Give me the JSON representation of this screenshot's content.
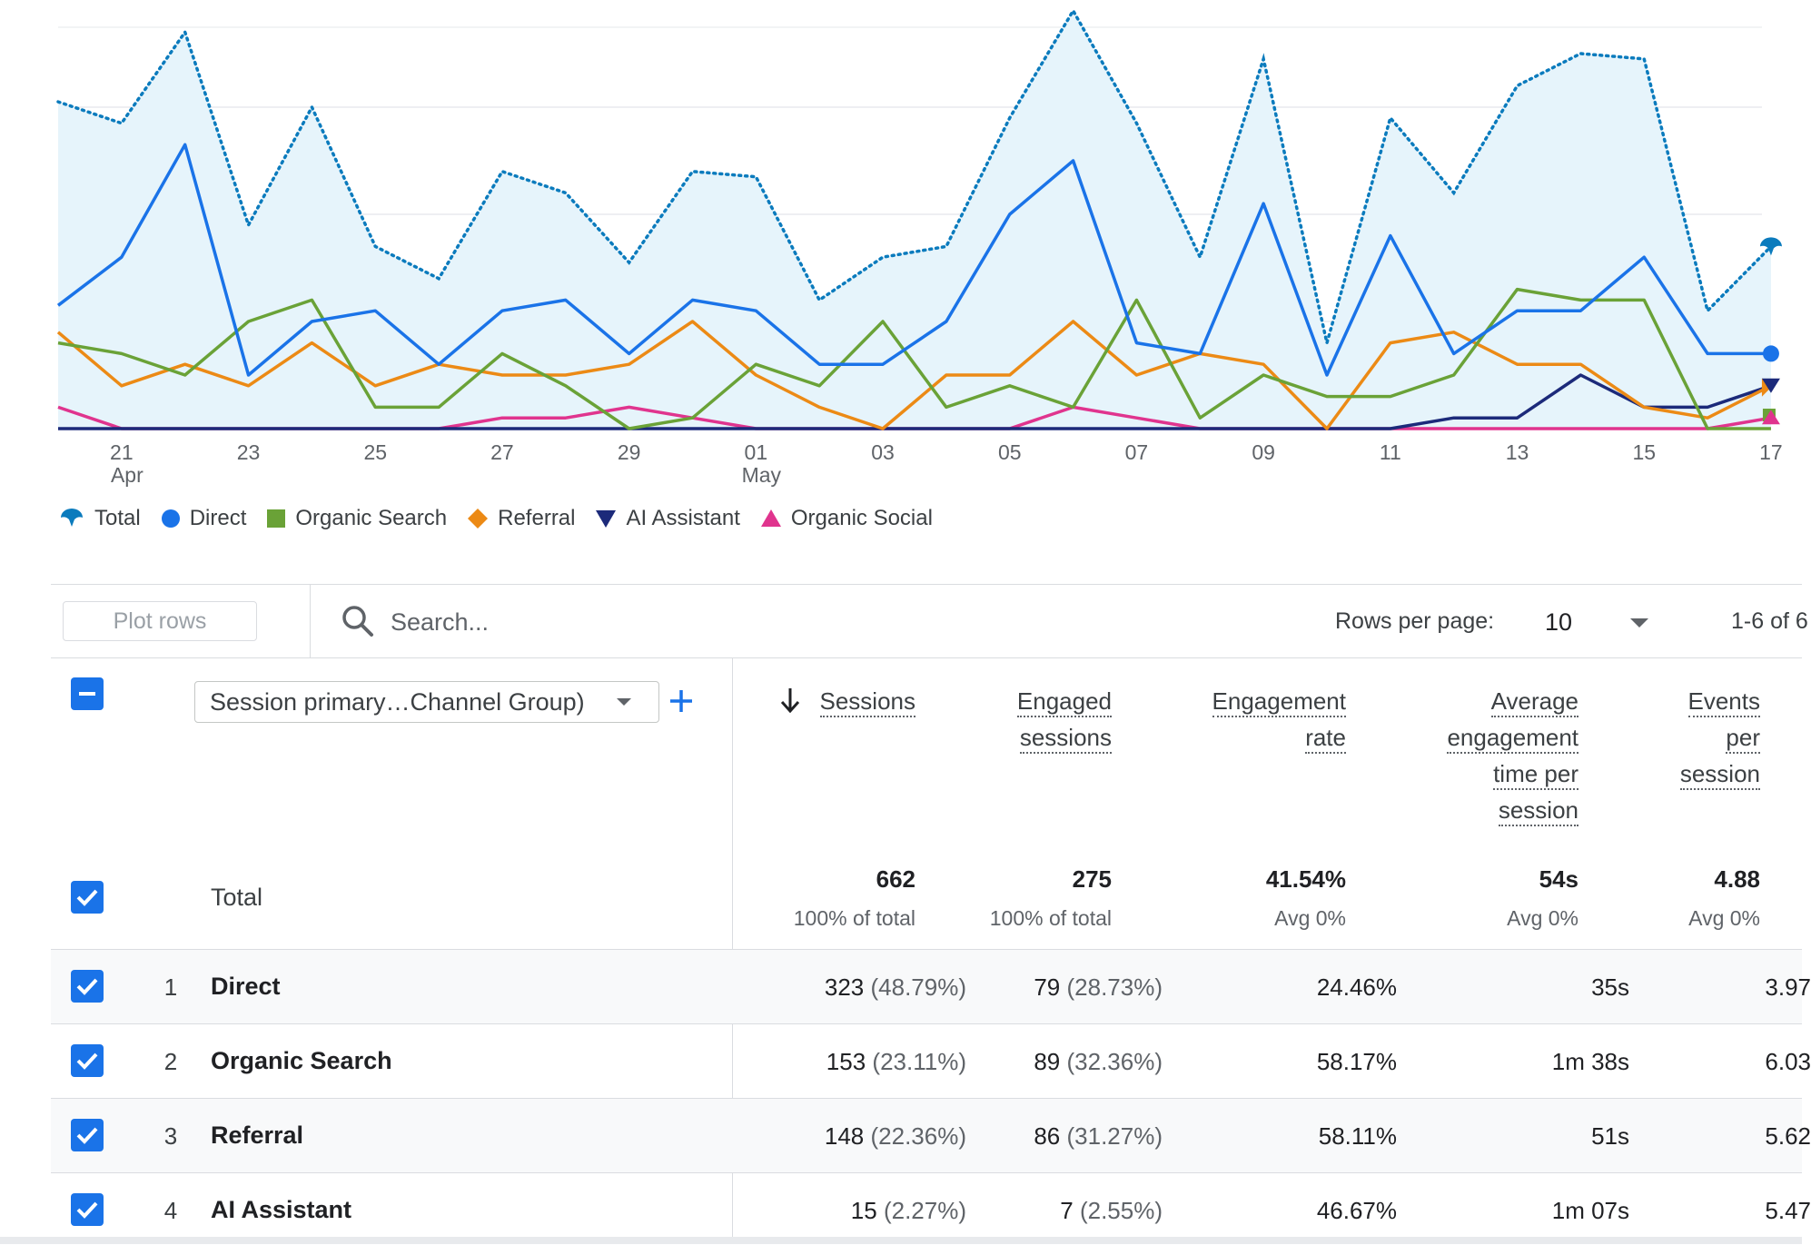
{
  "chart_data": {
    "type": "line",
    "x": [
      "20 Apr",
      "21 Apr",
      "22 Apr",
      "23 Apr",
      "24 Apr",
      "25 Apr",
      "26 Apr",
      "27 Apr",
      "28 Apr",
      "29 Apr",
      "30 Apr",
      "01 May",
      "02 May",
      "03 May",
      "04 May",
      "05 May",
      "06 May",
      "07 May",
      "08 May",
      "09 May",
      "10 May",
      "11 May",
      "12 May",
      "13 May",
      "14 May",
      "15 May",
      "16 May",
      "17 May"
    ],
    "x_tick_labels": [
      {
        "day": "21",
        "month": "Apr",
        "index": 1
      },
      {
        "day": "23",
        "month": "",
        "index": 3
      },
      {
        "day": "25",
        "month": "",
        "index": 5
      },
      {
        "day": "27",
        "month": "",
        "index": 7
      },
      {
        "day": "29",
        "month": "",
        "index": 9
      },
      {
        "day": "01",
        "month": "May",
        "index": 11
      },
      {
        "day": "03",
        "month": "",
        "index": 13
      },
      {
        "day": "05",
        "month": "",
        "index": 15
      },
      {
        "day": "07",
        "month": "",
        "index": 17
      },
      {
        "day": "09",
        "month": "",
        "index": 19
      },
      {
        "day": "11",
        "month": "",
        "index": 21
      },
      {
        "day": "13",
        "month": "",
        "index": 23
      },
      {
        "day": "15",
        "month": "",
        "index": 25
      },
      {
        "day": "17",
        "month": "",
        "index": 27
      }
    ],
    "ylim": [
      0,
      40
    ],
    "grid": true,
    "legend_position": "bottom-left",
    "series": [
      {
        "name": "Total",
        "style": "dotted-area",
        "color": "#0b7bbd",
        "values": [
          30.5,
          28.5,
          37,
          19,
          30,
          17,
          14,
          24,
          22,
          15.5,
          24,
          23.5,
          12,
          16,
          17,
          29,
          39,
          28.5,
          16,
          34.5,
          8,
          29,
          22,
          32,
          35,
          34.5,
          11,
          17
        ]
      },
      {
        "name": "Direct",
        "color": "#1a73e8",
        "values": [
          11.5,
          16,
          26.5,
          5,
          10,
          11,
          6,
          11,
          12,
          7,
          12,
          11,
          6,
          6,
          10,
          20,
          25,
          8,
          7,
          21,
          5,
          18,
          7,
          11,
          11,
          16,
          7,
          7
        ]
      },
      {
        "name": "Organic Search",
        "color": "#6aa237",
        "values": [
          8,
          7,
          5,
          10,
          12,
          2,
          2,
          7,
          4,
          0,
          1,
          6,
          4,
          10,
          2,
          4,
          2,
          12,
          1,
          5,
          3,
          3,
          5,
          13,
          12,
          12,
          0,
          0
        ]
      },
      {
        "name": "Referral",
        "color": "#ec8a15",
        "values": [
          9,
          4,
          6,
          4,
          8,
          4,
          6,
          5,
          5,
          6,
          10,
          5,
          2,
          0,
          5,
          5,
          10,
          5,
          7,
          6,
          0,
          8,
          9,
          6,
          6,
          2,
          1,
          4
        ]
      },
      {
        "name": "AI Assistant",
        "color": "#1c2a7a",
        "values": [
          0,
          0,
          0,
          0,
          0,
          0,
          0,
          0,
          0,
          0,
          0,
          0,
          0,
          0,
          0,
          0,
          0,
          0,
          0,
          0,
          0,
          0,
          1,
          1,
          5,
          2,
          2,
          4
        ]
      },
      {
        "name": "Organic Social",
        "color": "#e0348e",
        "values": [
          2,
          0,
          0,
          0,
          0,
          0,
          0,
          1,
          1,
          2,
          1,
          0,
          0,
          0,
          0,
          0,
          2,
          1,
          0,
          0,
          0,
          0,
          0,
          0,
          0,
          0,
          0,
          1
        ]
      }
    ]
  },
  "legend": [
    {
      "label": "Total",
      "color": "#0b7bbd",
      "marker": "map-pin-icon"
    },
    {
      "label": "Direct",
      "color": "#1a73e8",
      "marker": "circle-icon"
    },
    {
      "label": "Organic Search",
      "color": "#6aa237",
      "marker": "square-icon"
    },
    {
      "label": "Referral",
      "color": "#ec8a15",
      "marker": "diamond-icon"
    },
    {
      "label": "AI Assistant",
      "color": "#1c2a7a",
      "marker": "triangle-down-icon"
    },
    {
      "label": "Organic Social",
      "color": "#e0348e",
      "marker": "triangle-up-icon"
    }
  ],
  "toolbar": {
    "plot_rows_label": "Plot rows",
    "search_placeholder": "Search...",
    "rows_per_page_label": "Rows per page:",
    "rows_per_page_value": "10",
    "pagination": "1-6 of 6"
  },
  "table": {
    "dimension_label": "Session primary…Channel Group)",
    "headers": {
      "sessions": [
        "Sessions"
      ],
      "engaged_sessions": [
        "Engaged",
        "sessions"
      ],
      "engagement_rate": [
        "Engagement",
        "rate"
      ],
      "avg_engagement_time": [
        "Average",
        "engagement",
        "time per",
        "session"
      ],
      "events_per_session": [
        "Events",
        "per",
        "session"
      ]
    },
    "total": {
      "label": "Total",
      "sessions": "662",
      "sessions_sub": "100% of total",
      "engaged_sessions": "275",
      "engaged_sessions_sub": "100% of total",
      "engagement_rate": "41.54%",
      "engagement_rate_sub": "Avg 0%",
      "avg_engagement_time": "54s",
      "avg_engagement_time_sub": "Avg 0%",
      "events_per_session": "4.88",
      "events_per_session_sub": "Avg 0%"
    },
    "rows": [
      {
        "rank": "1",
        "name": "Direct",
        "sessions": "323",
        "sessions_pct": "(48.79%)",
        "engaged": "79",
        "engaged_pct": "(28.73%)",
        "rate": "24.46%",
        "time": "35s",
        "events": "3.97"
      },
      {
        "rank": "2",
        "name": "Organic Search",
        "sessions": "153",
        "sessions_pct": "(23.11%)",
        "engaged": "89",
        "engaged_pct": "(32.36%)",
        "rate": "58.17%",
        "time": "1m 38s",
        "events": "6.03"
      },
      {
        "rank": "3",
        "name": "Referral",
        "sessions": "148",
        "sessions_pct": "(22.36%)",
        "engaged": "86",
        "engaged_pct": "(31.27%)",
        "rate": "58.11%",
        "time": "51s",
        "events": "5.62"
      },
      {
        "rank": "4",
        "name": "AI Assistant",
        "sessions": "15",
        "sessions_pct": "(2.27%)",
        "engaged": "7",
        "engaged_pct": "(2.55%)",
        "rate": "46.67%",
        "time": "1m 07s",
        "events": "5.47"
      }
    ]
  }
}
